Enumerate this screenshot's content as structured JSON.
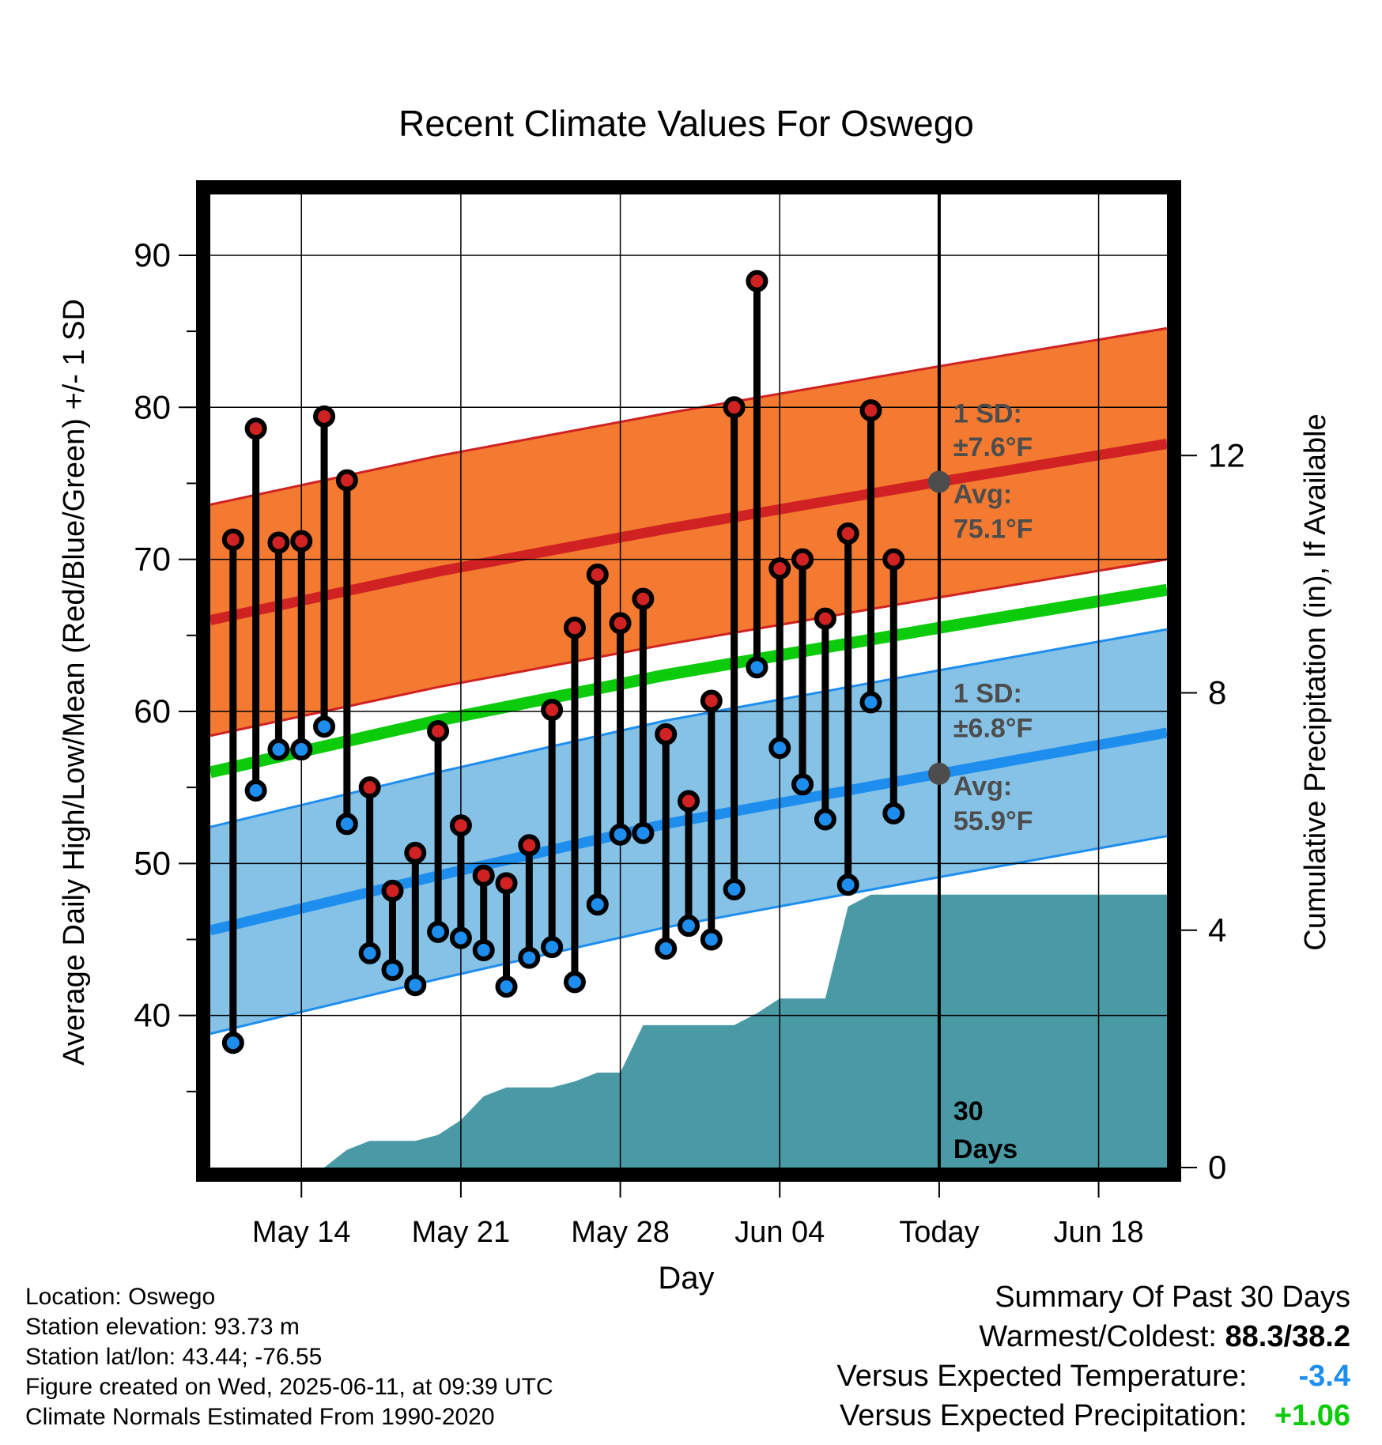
{
  "chart_data": {
    "type": "line",
    "title": "Recent Climate Values For Oswego",
    "xlabel": "Day",
    "ylabel": "Average Daily High/Low/Mean (Red/Blue/Green) +/- 1 SD",
    "y2label": "Cumulative Precipitation (in), If Available",
    "ylim": [
      30,
      94
    ],
    "y2lim": [
      0,
      16.4
    ],
    "yticks": [
      40,
      50,
      60,
      70,
      80,
      90
    ],
    "y2ticks": [
      0,
      4,
      8,
      12
    ],
    "xlim": [
      "2025-05-10",
      "2025-06-21"
    ],
    "xticks": [
      {
        "date": "2025-05-14",
        "label": "May 14"
      },
      {
        "date": "2025-05-21",
        "label": "May 21"
      },
      {
        "date": "2025-05-28",
        "label": "May 28"
      },
      {
        "date": "2025-06-04",
        "label": "Jun 04"
      },
      {
        "date": "2025-06-11",
        "label": "Today"
      },
      {
        "date": "2025-06-18",
        "label": "Jun 18"
      }
    ],
    "grid": true,
    "colors": {
      "high_band": "#F37A30",
      "high_line": "#D02222",
      "low_band": "#85C2E6",
      "low_line": "#1E8EEE",
      "mean_line": "#0BCB0B",
      "precip": "#4A9AA6",
      "high_dot": "#D02222",
      "low_dot": "#1E8EEE",
      "marker": "#4D4D4D"
    },
    "daily": [
      {
        "date": "2025-05-11",
        "high": 71.3,
        "low": 38.2
      },
      {
        "date": "2025-05-12",
        "high": 78.6,
        "low": 54.8
      },
      {
        "date": "2025-05-13",
        "high": 71.1,
        "low": 57.5
      },
      {
        "date": "2025-05-14",
        "high": 71.2,
        "low": 57.5
      },
      {
        "date": "2025-05-15",
        "high": 79.4,
        "low": 59.0
      },
      {
        "date": "2025-05-16",
        "high": 75.2,
        "low": 52.6
      },
      {
        "date": "2025-05-17",
        "high": 55.0,
        "low": 44.1
      },
      {
        "date": "2025-05-18",
        "high": 48.2,
        "low": 43.0
      },
      {
        "date": "2025-05-19",
        "high": 50.7,
        "low": 42.0
      },
      {
        "date": "2025-05-20",
        "high": 58.7,
        "low": 45.5
      },
      {
        "date": "2025-05-21",
        "high": 52.5,
        "low": 45.1
      },
      {
        "date": "2025-05-22",
        "high": 49.2,
        "low": 44.3
      },
      {
        "date": "2025-05-23",
        "high": 48.7,
        "low": 41.9
      },
      {
        "date": "2025-05-24",
        "high": 51.2,
        "low": 43.8
      },
      {
        "date": "2025-05-25",
        "high": 60.1,
        "low": 44.5
      },
      {
        "date": "2025-05-26",
        "high": 65.5,
        "low": 42.2
      },
      {
        "date": "2025-05-27",
        "high": 69.0,
        "low": 47.3
      },
      {
        "date": "2025-05-28",
        "high": 65.8,
        "low": 51.9
      },
      {
        "date": "2025-05-29",
        "high": 67.4,
        "low": 52.0
      },
      {
        "date": "2025-05-30",
        "high": 58.5,
        "low": 44.4
      },
      {
        "date": "2025-05-31",
        "high": 54.1,
        "low": 45.9
      },
      {
        "date": "2025-06-01",
        "high": 60.7,
        "low": 45.0
      },
      {
        "date": "2025-06-02",
        "high": 80.0,
        "low": 48.3
      },
      {
        "date": "2025-06-03",
        "high": 88.3,
        "low": 62.9
      },
      {
        "date": "2025-06-04",
        "high": 69.4,
        "low": 57.6
      },
      {
        "date": "2025-06-05",
        "high": 70.0,
        "low": 55.2
      },
      {
        "date": "2025-06-06",
        "high": 66.1,
        "low": 52.9
      },
      {
        "date": "2025-06-07",
        "high": 71.7,
        "low": 48.6
      },
      {
        "date": "2025-06-08",
        "high": 79.8,
        "low": 60.6
      },
      {
        "date": "2025-06-09",
        "high": 70.0,
        "low": 53.3
      }
    ],
    "normals": {
      "x": [
        "2025-05-10",
        "2025-05-20",
        "2025-05-30",
        "2025-06-11",
        "2025-06-21"
      ],
      "high_mean": [
        66.0,
        69.2,
        72.0,
        75.1,
        77.6
      ],
      "low_mean": [
        45.6,
        49.2,
        52.6,
        55.9,
        58.6
      ],
      "mean": [
        56.0,
        59.4,
        62.4,
        65.5,
        68.0
      ],
      "high_sd": 7.6,
      "low_sd": 6.8
    },
    "precip": {
      "x": [
        "2025-05-10",
        "2025-05-15",
        "2025-05-16",
        "2025-05-17",
        "2025-05-18",
        "2025-05-19",
        "2025-05-20",
        "2025-05-21",
        "2025-05-22",
        "2025-05-23",
        "2025-05-24",
        "2025-05-25",
        "2025-05-26",
        "2025-05-27",
        "2025-05-28",
        "2025-05-29",
        "2025-05-30",
        "2025-06-02",
        "2025-06-03",
        "2025-06-04",
        "2025-06-05",
        "2025-06-06",
        "2025-06-07",
        "2025-06-08",
        "2025-06-09",
        "2025-06-21"
      ],
      "values": [
        0.0,
        0.0,
        0.3,
        0.45,
        0.45,
        0.45,
        0.55,
        0.8,
        1.2,
        1.35,
        1.35,
        1.35,
        1.45,
        1.6,
        1.6,
        2.4,
        2.4,
        2.4,
        2.6,
        2.85,
        2.85,
        2.85,
        4.4,
        4.6,
        4.6,
        4.6
      ]
    },
    "annotations": {
      "today_date": "2025-06-11",
      "high_sd_label": "1 SD:",
      "high_sd_value": "±7.6°F",
      "high_avg_label": "Avg:",
      "high_avg_value": "75.1°F",
      "low_sd_label": "1 SD:",
      "low_sd_value": "±6.8°F",
      "low_avg_label": "Avg:",
      "low_avg_value": "55.9°F",
      "days_line1": "30",
      "days_line2": "Days"
    }
  },
  "info": {
    "location": "Location: Oswego",
    "elevation": "Station elevation: 93.73 m",
    "latlon": "Station lat/lon: 43.44; -76.55",
    "created": "Figure created on Wed, 2025-06-11, at 09:39 UTC",
    "normals": "Climate Normals Estimated From 1990-2020"
  },
  "summary": {
    "title": "Summary Of Past 30 Days",
    "warm_label": "Warmest/Coldest:",
    "warm_value": "88.3/38.2",
    "temp_label": "Versus Expected Temperature:",
    "temp_value": "-3.4",
    "temp_color": "#1E8EEE",
    "precip_label": "Versus Expected Precipitation:",
    "precip_value": "+1.06",
    "precip_color": "#0BCB0B"
  }
}
